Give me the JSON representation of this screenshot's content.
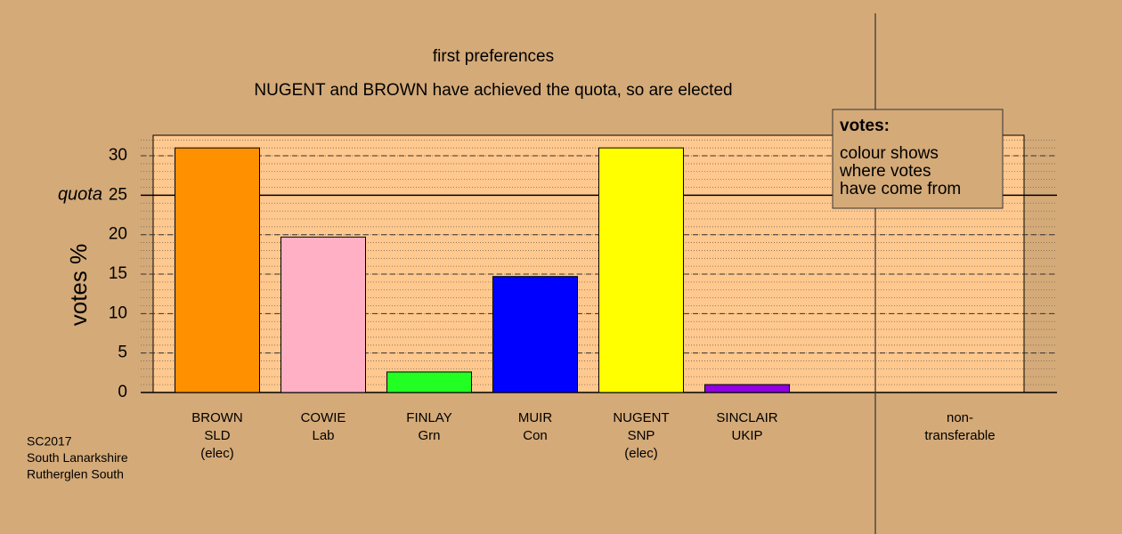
{
  "chart_data": {
    "type": "bar",
    "title": "first preferences",
    "subtitle": "NUGENT and BROWN have achieved the quota, so are elected",
    "y_label": "votes %",
    "categories": [
      "BROWN\nSLD\n(elec)",
      "COWIE\nLab",
      "FINLAY\nGrn",
      "MUIR\nCon",
      "NUGENT\nSNP\n(elec)",
      "SINCLAIR\nUKIP",
      "non-\ntransferable"
    ],
    "values": [
      31.0,
      19.7,
      2.6,
      14.7,
      31.0,
      1.0,
      null
    ],
    "colors": [
      "#ff9000",
      "#ffb0c4",
      "#22ff22",
      "#0000ff",
      "#ffff00",
      "#9000e0",
      "#000000"
    ],
    "ylim": [
      0,
      32.6
    ],
    "yticks": [
      0,
      5,
      10,
      15,
      20,
      25,
      30
    ],
    "minor_grid_step": 1,
    "grid": true,
    "quota": 25,
    "quota_label": "quota",
    "legend": {
      "title": "votes:",
      "lines": [
        "colour shows",
        "where votes",
        "have come from"
      ]
    },
    "footer": [
      "SC2017",
      "South Lanarkshire",
      "Rutherglen South"
    ]
  }
}
